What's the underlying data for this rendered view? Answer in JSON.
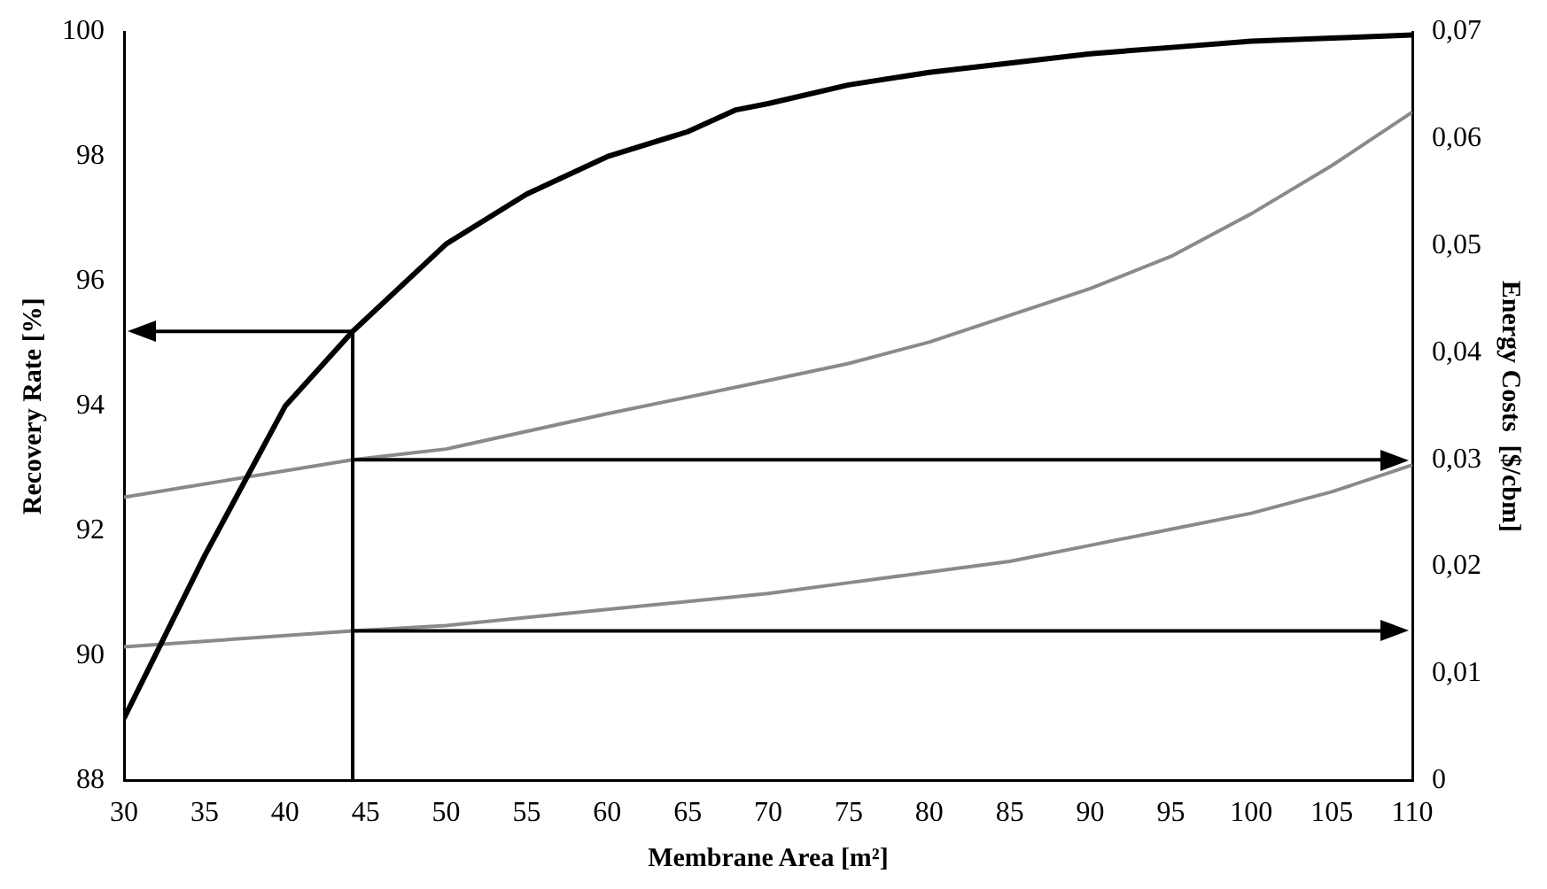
{
  "chart_data": {
    "type": "line",
    "xlabel": "Membrane Area [m²]",
    "ylabel": "Recovery Rate [%]",
    "y2label": "Energy Costs  [$/cbm]",
    "xlim": [
      30,
      110
    ],
    "xticks": [
      30,
      35,
      40,
      45,
      50,
      55,
      60,
      65,
      70,
      75,
      80,
      85,
      90,
      95,
      100,
      105,
      110
    ],
    "ylim": [
      88,
      100
    ],
    "yticks": [
      88,
      90,
      92,
      94,
      96,
      98,
      100
    ],
    "y2lim": [
      0,
      0.07
    ],
    "y2ticks": [
      {
        "value": 0,
        "label": "0"
      },
      {
        "value": 0.01,
        "label": "0,01"
      },
      {
        "value": 0.02,
        "label": "0,02"
      },
      {
        "value": 0.03,
        "label": "0,03"
      },
      {
        "value": 0.04,
        "label": "0,04"
      },
      {
        "value": 0.05,
        "label": "0,05"
      },
      {
        "value": 0.06,
        "label": "0,06"
      },
      {
        "value": 0.07,
        "label": "0,07"
      }
    ],
    "grid": false,
    "legend": false,
    "marker": "none",
    "line_style": "solid",
    "series": [
      {
        "color": "#000000",
        "x": [
          30,
          35,
          40,
          44.2,
          50,
          55,
          60,
          65,
          68,
          70,
          75,
          80,
          85,
          90,
          95,
          100,
          105,
          110
        ],
        "values": [
          89.0,
          91.6,
          94.0,
          95.2,
          96.6,
          97.4,
          98.0,
          98.4,
          98.75,
          98.85,
          99.15,
          99.35,
          99.5,
          99.65,
          99.75,
          99.85,
          99.9,
          99.95
        ]
      },
      {
        "color": "#8a8a8a",
        "axis": "y2",
        "x": [
          30,
          44.2,
          50,
          60,
          70,
          75,
          80,
          85,
          90,
          95,
          100,
          105,
          110
        ],
        "values": [
          0.0265,
          0.03,
          0.031,
          0.0343,
          0.0374,
          0.039,
          0.041,
          0.0435,
          0.046,
          0.049,
          0.053,
          0.0575,
          0.0625
        ]
      },
      {
        "color": "#8a8a8a",
        "axis": "y2",
        "x": [
          30,
          44.2,
          50,
          60,
          70,
          75,
          80,
          85,
          90,
          95,
          100,
          105,
          110
        ],
        "values": [
          0.0125,
          0.014,
          0.0145,
          0.016,
          0.0175,
          0.0185,
          0.0195,
          0.0205,
          0.022,
          0.0235,
          0.025,
          0.027,
          0.0295
        ]
      }
    ],
    "ref_lines": [
      {
        "axis": "x",
        "value": 44.2,
        "color": "#000000"
      },
      {
        "axis": "y",
        "value": 95.2,
        "color": "#000000"
      },
      {
        "axis": "y2",
        "value": 0.03,
        "color": "#000000"
      },
      {
        "axis": "y2",
        "value": 0.014,
        "color": "#000000"
      }
    ]
  }
}
